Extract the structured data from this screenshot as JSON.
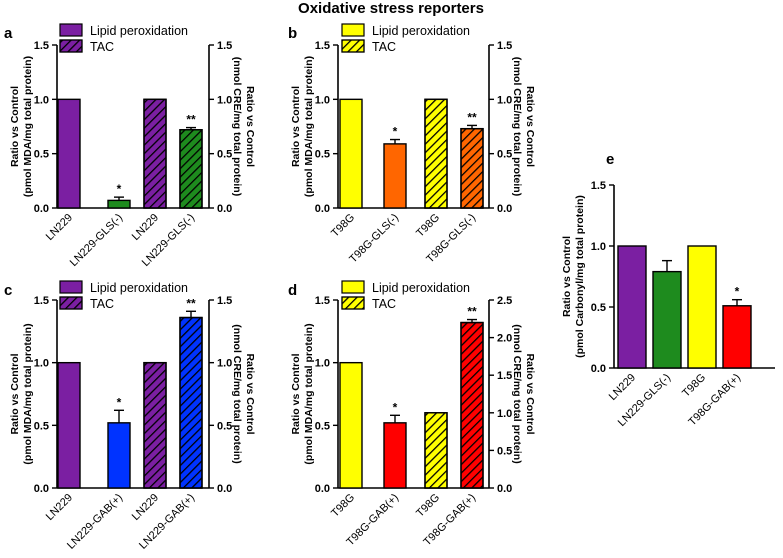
{
  "figure_title": "Oxidative stress reporters",
  "colors": {
    "purple": "#7B1FA2",
    "green": "#1E8B1E",
    "yellow": "#FFFF00",
    "orange": "#FF6600",
    "blue": "#0033FF",
    "red": "#FF0000"
  },
  "chart_data": [
    {
      "id": "a",
      "type": "bar",
      "panel_label": "a",
      "ylabel_left": [
        "Ratio vs Control",
        "(pmol  MDA/mg total protein)"
      ],
      "ylabel_right": [
        "Ratio vs Control",
        "(nmol CRE/mg total protein)"
      ],
      "ylim_left": [
        0,
        1.5
      ],
      "ylim_right": [
        0,
        1.5
      ],
      "yticks_left": [
        "0.0",
        "0.5",
        "1.0",
        "1.5"
      ],
      "yticks_right": [
        "0.0",
        "0.5",
        "1.0",
        "1.5"
      ],
      "legend": [
        {
          "label": "Lipid peroxidation",
          "color": "purple",
          "hatch": false
        },
        {
          "label": "TAC",
          "color": "purple",
          "hatch": true
        }
      ],
      "bars": [
        {
          "category": "LN229",
          "value": 1.0,
          "error": 0,
          "color": "purple",
          "hatch": false,
          "axis": "left",
          "sig": ""
        },
        {
          "category": "LN229-GLS(-)",
          "value": 0.07,
          "error": 0.03,
          "color": "green",
          "hatch": false,
          "axis": "left",
          "sig": "*"
        },
        {
          "category": "LN229",
          "value": 1.0,
          "error": 0,
          "color": "purple",
          "hatch": true,
          "axis": "right",
          "sig": ""
        },
        {
          "category": "LN229-GLS(-)",
          "value": 0.72,
          "error": 0.02,
          "color": "green",
          "hatch": true,
          "axis": "right",
          "sig": "**"
        }
      ]
    },
    {
      "id": "b",
      "type": "bar",
      "panel_label": "b",
      "ylabel_left": [
        "Ratio vs Control",
        "(pmol  MDA/mg total protein)"
      ],
      "ylabel_right": [
        "Ratio vs Control",
        "(nmol CRE/mg total protein)"
      ],
      "ylim_left": [
        0,
        1.5
      ],
      "ylim_right": [
        0,
        1.5
      ],
      "yticks_left": [
        "0.0",
        "0.5",
        "1.0",
        "1.5"
      ],
      "yticks_right": [
        "0.0",
        "0.5",
        "1.0",
        "1.5"
      ],
      "legend": [
        {
          "label": "Lipid peroxidation",
          "color": "yellow",
          "hatch": false
        },
        {
          "label": "TAC",
          "color": "yellow",
          "hatch": true
        }
      ],
      "bars": [
        {
          "category": "T98G",
          "value": 1.0,
          "error": 0,
          "color": "yellow",
          "hatch": false,
          "axis": "left",
          "sig": ""
        },
        {
          "category": "T98G-GLS(-)",
          "value": 0.59,
          "error": 0.04,
          "color": "orange",
          "hatch": false,
          "axis": "left",
          "sig": "*"
        },
        {
          "category": "T98G",
          "value": 1.0,
          "error": 0,
          "color": "yellow",
          "hatch": true,
          "axis": "right",
          "sig": ""
        },
        {
          "category": "T98G-GLS(-)",
          "value": 0.73,
          "error": 0.03,
          "color": "orange",
          "hatch": true,
          "axis": "right",
          "sig": "**"
        }
      ]
    },
    {
      "id": "c",
      "type": "bar",
      "panel_label": "c",
      "ylabel_left": [
        "Ratio vs Control",
        "(pmol  MDA/mg total protein)"
      ],
      "ylabel_right": [
        "Ratio vs Control",
        "(nmol CRE/mg total protein)"
      ],
      "ylim_left": [
        0,
        1.5
      ],
      "ylim_right": [
        0,
        1.5
      ],
      "yticks_left": [
        "0.0",
        "0.5",
        "1.0",
        "1.5"
      ],
      "yticks_right": [
        "0.0",
        "0.5",
        "1.0",
        "1.5"
      ],
      "legend": [
        {
          "label": "Lipid peroxidation",
          "color": "purple",
          "hatch": false
        },
        {
          "label": "TAC",
          "color": "purple",
          "hatch": true
        }
      ],
      "bars": [
        {
          "category": "LN229",
          "value": 1.0,
          "error": 0,
          "color": "purple",
          "hatch": false,
          "axis": "left",
          "sig": ""
        },
        {
          "category": "LN229-GAB(+)",
          "value": 0.52,
          "error": 0.1,
          "color": "blue",
          "hatch": false,
          "axis": "left",
          "sig": "*"
        },
        {
          "category": "LN229",
          "value": 1.0,
          "error": 0,
          "color": "purple",
          "hatch": true,
          "axis": "right",
          "sig": ""
        },
        {
          "category": "LN229-GAB(+)",
          "value": 1.36,
          "error": 0.05,
          "color": "blue",
          "hatch": true,
          "axis": "right",
          "sig": "**"
        }
      ]
    },
    {
      "id": "d",
      "type": "bar",
      "panel_label": "d",
      "ylabel_left": [
        "Ratio vs Control",
        "(pmol  MDA/mg total protein)"
      ],
      "ylabel_right": [
        "Ratio vs Control",
        "(nmol CRE/mg total protein)"
      ],
      "ylim_left": [
        0,
        1.5
      ],
      "ylim_right": [
        0,
        2.5
      ],
      "yticks_left": [
        "0.0",
        "0.5",
        "1.0",
        "1.5"
      ],
      "yticks_right": [
        "0.0",
        "0.5",
        "1.0",
        "1.5",
        "2.0",
        "2.5"
      ],
      "legend": [
        {
          "label": "Lipid peroxidation",
          "color": "yellow",
          "hatch": false
        },
        {
          "label": "TAC",
          "color": "yellow",
          "hatch": true
        }
      ],
      "bars": [
        {
          "category": "T98G",
          "value": 1.0,
          "error": 0,
          "color": "yellow",
          "hatch": false,
          "axis": "left",
          "sig": ""
        },
        {
          "category": "T98G-GAB(+)",
          "value": 0.52,
          "error": 0.06,
          "color": "red",
          "hatch": false,
          "axis": "left",
          "sig": "*"
        },
        {
          "category": "T98G",
          "value": 1.0,
          "error": 0,
          "color": "yellow",
          "hatch": true,
          "axis": "right",
          "sig": ""
        },
        {
          "category": "T98G-GAB(+)",
          "value": 2.2,
          "error": 0.04,
          "color": "red",
          "hatch": true,
          "axis": "right",
          "sig": "**"
        }
      ]
    },
    {
      "id": "e",
      "type": "bar",
      "panel_label": "e",
      "ylabel_left": [
        "Ratio vs Control",
        "(pmol Carbonyl/mg total protein)"
      ],
      "ylim_left": [
        0,
        1.5
      ],
      "yticks_left": [
        "0.0",
        "0.5",
        "1.0",
        "1.5"
      ],
      "bars": [
        {
          "category": "LN229",
          "value": 1.0,
          "error": 0,
          "color": "purple",
          "hatch": false,
          "axis": "left",
          "sig": ""
        },
        {
          "category": "LN229-GLS(-)",
          "value": 0.79,
          "error": 0.09,
          "color": "green",
          "hatch": false,
          "axis": "left",
          "sig": ""
        },
        {
          "category": "T98G",
          "value": 1.0,
          "error": 0,
          "color": "yellow",
          "hatch": false,
          "axis": "left",
          "sig": ""
        },
        {
          "category": "T98G-GAB(+)",
          "value": 0.51,
          "error": 0.05,
          "color": "red",
          "hatch": false,
          "axis": "left",
          "sig": "*"
        }
      ]
    }
  ]
}
